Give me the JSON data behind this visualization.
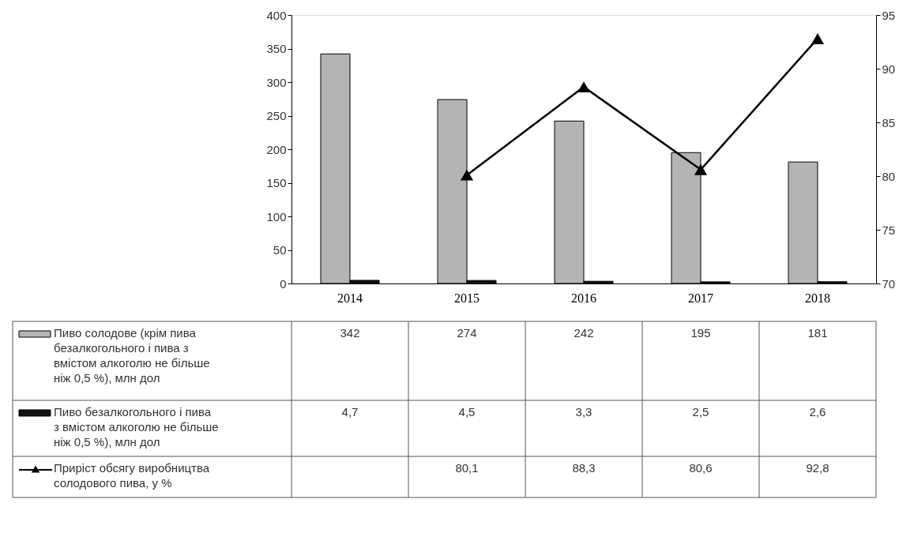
{
  "chart_data": {
    "type": "bar",
    "categories": [
      "2014",
      "2015",
      "2016",
      "2017",
      "2018"
    ],
    "series": [
      {
        "name": "Пиво солодове (крім пива безалкогольного і пива з вмістом алкоголю не більше  ніж 0,5 %), млн дол",
        "color": "#b4b4b4",
        "values": [
          342,
          274,
          242,
          195,
          181
        ],
        "value_labels": [
          "342",
          "274",
          "242",
          "195",
          "181"
        ]
      },
      {
        "name": "Пиво безалкогольного і пива з вмістом алкоголю не більше  ніж 0,5 %), млн дол",
        "color": "#111111",
        "values": [
          4.7,
          4.5,
          3.3,
          2.5,
          2.6
        ],
        "value_labels": [
          "4,7",
          "4,5",
          "3,3",
          "2,5",
          "2,6"
        ]
      },
      {
        "name": "Приріст обсягу виробництва солодового пива, у %",
        "type": "line",
        "axis": "y2",
        "color": "#000000",
        "marker": "triangle",
        "values": [
          null,
          80.1,
          88.3,
          80.6,
          92.8
        ],
        "value_labels": [
          null,
          "80,1",
          "88,3",
          "80,6",
          "92,8"
        ]
      }
    ],
    "ylim": [
      0,
      400
    ],
    "yticks": [
      0,
      50,
      100,
      150,
      200,
      250,
      300,
      350,
      400
    ],
    "y2lim": [
      70,
      95
    ],
    "y2ticks": [
      70,
      75,
      80,
      85,
      90,
      95
    ],
    "legend": "bottom"
  }
}
